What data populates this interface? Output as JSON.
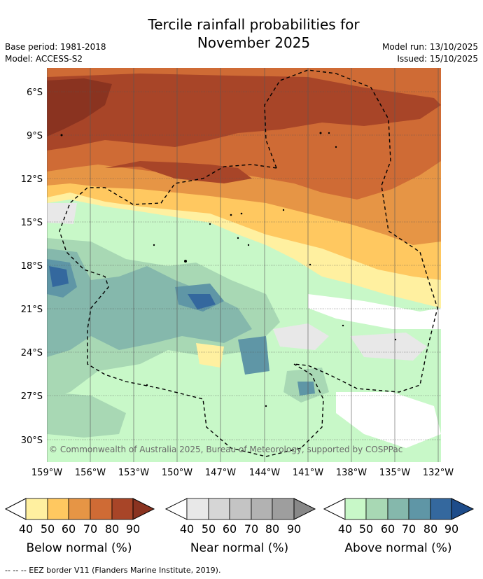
{
  "header": {
    "title_line1": "Tercile rainfall probabilities for",
    "title_line2": "November 2025",
    "base_period": "Base period: 1981-2018",
    "model": "Model: ACCESS-S2",
    "model_run": "Model run: 13/10/2025",
    "issued": "Issued: 15/10/2025"
  },
  "map": {
    "lat_labels": [
      "6°S",
      "9°S",
      "12°S",
      "15°S",
      "18°S",
      "21°S",
      "24°S",
      "27°S",
      "30°S"
    ],
    "lon_labels": [
      "159°W",
      "156°W",
      "153°W",
      "150°W",
      "147°W",
      "144°W",
      "141°W",
      "138°W",
      "135°W",
      "132°W"
    ],
    "copyright": "© Commonwealth of Australia 2025, Bureau of Meteorology, supported by COSPPac"
  },
  "colorbars": [
    {
      "title": "Below normal (%)",
      "ticks": [
        "40",
        "50",
        "60",
        "70",
        "80",
        "90"
      ],
      "colors": [
        "#fff0a0",
        "#ffc860",
        "#e69545",
        "#cf6b35",
        "#a84528",
        "#8a3320"
      ]
    },
    {
      "title": "Near normal (%)",
      "ticks": [
        "40",
        "50",
        "60",
        "70",
        "80",
        "90"
      ],
      "colors": [
        "#e8e8e8",
        "#d6d6d6",
        "#c4c4c4",
        "#b2b2b2",
        "#9e9e9e",
        "#888888"
      ]
    },
    {
      "title": "Above normal (%)",
      "ticks": [
        "40",
        "50",
        "60",
        "70",
        "80",
        "90"
      ],
      "colors": [
        "#c8f8c8",
        "#a8d8b4",
        "#85b8ac",
        "#5f96a6",
        "#34689e",
        "#1d4c8a"
      ]
    }
  ],
  "footer": {
    "legend_line": "--  --  -- EEZ border V11 (Flanders Marine Institute, 2019)."
  }
}
